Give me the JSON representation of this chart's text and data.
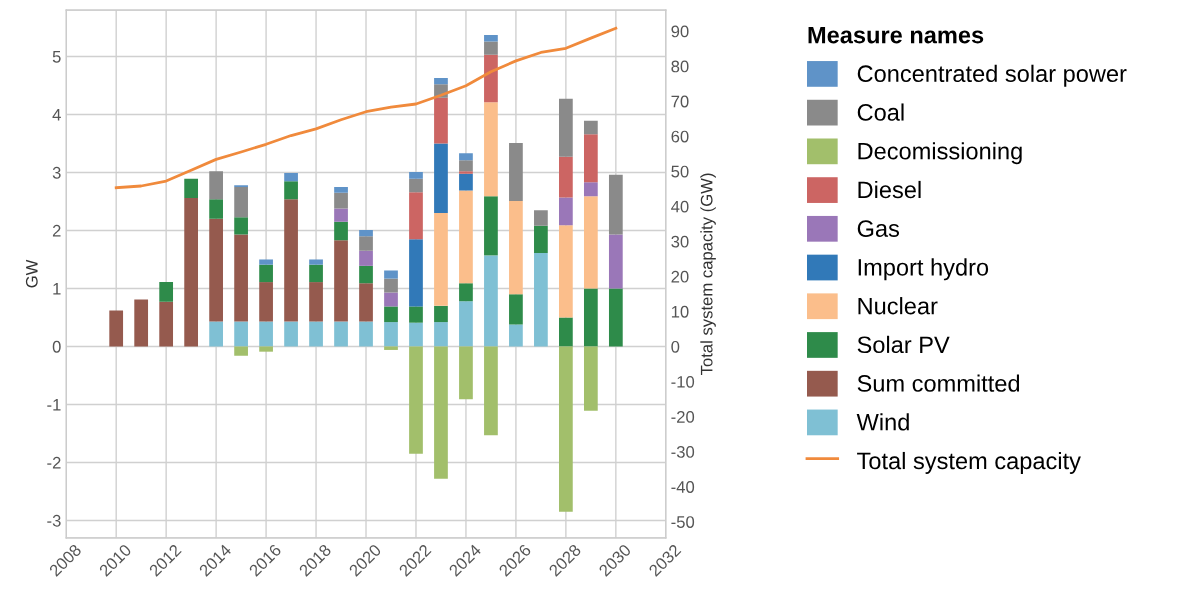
{
  "chart_data": {
    "type": "bar",
    "stacked": true,
    "ylabel": "GW",
    "y2label": "Total system capacity (GW)",
    "legend_title": "Measure names",
    "legend": "right",
    "grid": true,
    "x": [
      2010,
      2011,
      2012,
      2013,
      2014,
      2015,
      2016,
      2017,
      2018,
      2019,
      2020,
      2021,
      2022,
      2023,
      2024,
      2025,
      2026,
      2027,
      2028,
      2029,
      2030
    ],
    "xlim": [
      2008,
      2032
    ],
    "xticks": [
      2008,
      2010,
      2012,
      2014,
      2016,
      2018,
      2020,
      2022,
      2024,
      2026,
      2028,
      2030,
      2032
    ],
    "ylim": [
      -3.3,
      5.8
    ],
    "yticks": [
      -3,
      -2,
      -1,
      0,
      1,
      2,
      3,
      4,
      5
    ],
    "y2lim": [
      -54.6,
      96
    ],
    "y2ticks": [
      -50,
      -40,
      -30,
      -20,
      -10,
      0,
      10,
      20,
      30,
      40,
      50,
      60,
      70,
      80,
      90
    ],
    "series": [
      {
        "name": "Wind",
        "color": "#7fc0d4",
        "values": [
          null,
          null,
          null,
          null,
          0.43,
          0.43,
          0.43,
          0.43,
          0.43,
          0.43,
          0.43,
          0.42,
          0.41,
          0.42,
          0.78,
          1.57,
          0.38,
          1.61,
          null,
          null,
          null
        ]
      },
      {
        "name": "Sum committed",
        "color": "#955a4e",
        "values": [
          0.62,
          0.81,
          0.77,
          2.56,
          1.77,
          1.5,
          0.68,
          2.11,
          0.68,
          1.4,
          0.66,
          null,
          null,
          null,
          null,
          null,
          null,
          null,
          null,
          null,
          null
        ]
      },
      {
        "name": "Solar PV",
        "color": "#2e8b4a",
        "values": [
          null,
          null,
          0.34,
          0.33,
          0.34,
          0.3,
          0.3,
          0.31,
          0.3,
          0.32,
          0.3,
          0.27,
          0.28,
          0.28,
          0.31,
          1.02,
          0.52,
          0.47,
          0.5,
          1.0,
          1.0
        ]
      },
      {
        "name": "Nuclear",
        "color": "#fbbe8b",
        "values": [
          null,
          null,
          null,
          null,
          null,
          null,
          null,
          null,
          null,
          null,
          null,
          null,
          null,
          1.6,
          1.6,
          1.62,
          1.61,
          null,
          1.59,
          1.59,
          null
        ]
      },
      {
        "name": "Import hydro",
        "color": "#3179b8",
        "values": [
          null,
          null,
          null,
          null,
          null,
          null,
          null,
          null,
          null,
          null,
          null,
          null,
          1.16,
          1.2,
          0.29,
          null,
          null,
          null,
          null,
          null,
          null
        ]
      },
      {
        "name": "Gas",
        "color": "#9a77b8",
        "values": [
          null,
          null,
          null,
          null,
          null,
          null,
          null,
          null,
          null,
          0.23,
          0.26,
          0.24,
          null,
          null,
          null,
          null,
          null,
          null,
          0.48,
          0.24,
          0.93
        ]
      },
      {
        "name": "Diesel",
        "color": "#cc6563",
        "values": [
          null,
          null,
          null,
          null,
          null,
          null,
          null,
          null,
          null,
          null,
          null,
          null,
          0.81,
          0.79,
          0.04,
          0.82,
          null,
          null,
          0.7,
          0.83,
          null
        ]
      },
      {
        "name": "Decomissioning",
        "color": "#a2bf6b",
        "values": [
          null,
          null,
          null,
          null,
          null,
          -0.16,
          -0.09,
          null,
          null,
          null,
          null,
          -0.06,
          -1.85,
          -2.28,
          -0.91,
          -1.53,
          null,
          null,
          -2.85,
          -1.11,
          null
        ]
      },
      {
        "name": "Coal",
        "color": "#8a8a8a",
        "values": [
          null,
          null,
          null,
          null,
          0.48,
          0.52,
          null,
          null,
          null,
          0.27,
          0.25,
          0.24,
          0.23,
          0.23,
          0.19,
          0.23,
          1.0,
          0.27,
          1.0,
          0.23,
          1.03
        ]
      },
      {
        "name": "Concentrated solar power",
        "color": "#5f93c8",
        "values": [
          null,
          null,
          null,
          null,
          null,
          0.03,
          0.09,
          0.14,
          0.09,
          0.1,
          0.11,
          0.14,
          0.12,
          0.11,
          0.12,
          0.11,
          null,
          null,
          null,
          null,
          null
        ]
      },
      {
        "name": "Total system capacity",
        "type": "line",
        "axis": "y2",
        "color": "#f08a3c",
        "values": [
          45.3,
          45.8,
          47.2,
          50.3,
          53.4,
          55.5,
          57.7,
          60.2,
          62.1,
          64.7,
          67.0,
          68.3,
          69.2,
          71.7,
          74.4,
          78.4,
          81.5,
          83.9,
          85.1,
          88.0,
          90.8
        ]
      }
    ]
  }
}
